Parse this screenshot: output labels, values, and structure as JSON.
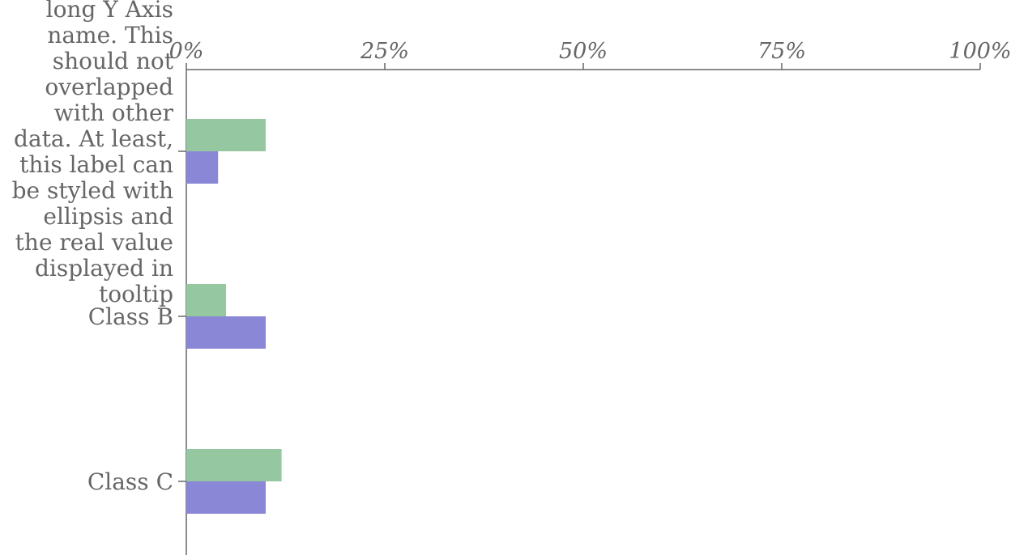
{
  "chart_data": {
    "type": "bar",
    "orientation": "horizontal",
    "categories": [
      "long Y Axis name. This should not overlapped with other data. At least, this label can be styled with ellipsis and the real value displayed in tooltip",
      "Class B",
      "Class C"
    ],
    "series": [
      {
        "color": "#95c8a0",
        "values": [
          10,
          5,
          12
        ]
      },
      {
        "color": "#8a88d6",
        "values": [
          4,
          10,
          10
        ]
      }
    ],
    "xlim": [
      0,
      100
    ],
    "x_ticks": [
      "0%",
      "25%",
      "50%",
      "75%",
      "100%"
    ],
    "x_tick_values": [
      0,
      25,
      50,
      75,
      100
    ],
    "x_axis_position": "top",
    "grid": false,
    "legend": "none"
  }
}
